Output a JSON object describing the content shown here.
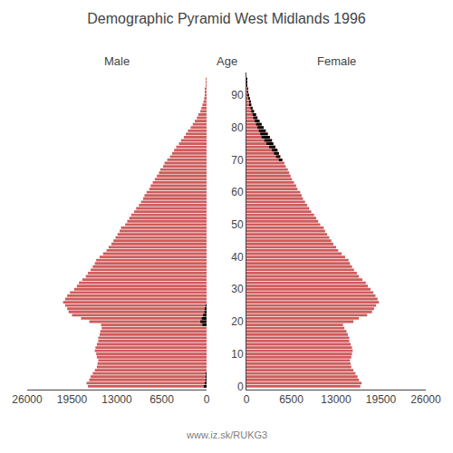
{
  "chart_data": {
    "type": "bar",
    "orientation": "horizontal",
    "title": "Demographic Pyramid West Midlands 1996",
    "ylabel": "Age",
    "annotations": [
      "www.iz.sk/RUKG3"
    ],
    "grid": false,
    "categories": [
      0,
      1,
      2,
      3,
      4,
      5,
      6,
      7,
      8,
      9,
      10,
      11,
      12,
      13,
      14,
      15,
      16,
      17,
      18,
      19,
      20,
      21,
      22,
      23,
      24,
      25,
      26,
      27,
      28,
      29,
      30,
      31,
      32,
      33,
      34,
      35,
      36,
      37,
      38,
      39,
      40,
      41,
      42,
      43,
      44,
      45,
      46,
      47,
      48,
      49,
      50,
      51,
      52,
      53,
      54,
      55,
      56,
      57,
      58,
      59,
      60,
      61,
      62,
      63,
      64,
      65,
      66,
      67,
      68,
      69,
      70,
      71,
      72,
      73,
      74,
      75,
      76,
      77,
      78,
      79,
      80,
      81,
      82,
      83,
      84,
      85,
      86,
      87,
      88,
      89,
      90,
      91,
      92,
      93,
      94,
      95
    ],
    "xlim": [
      0,
      26000
    ],
    "xticks": [
      0,
      6500,
      13000,
      19500,
      26000
    ],
    "ylim": [
      -1,
      97
    ],
    "yticks": [
      0,
      10,
      20,
      30,
      40,
      50,
      60,
      70,
      80,
      90
    ],
    "series": [
      {
        "name": "Male",
        "color": "#CD5C5C",
        "values": [
          17200,
          17400,
          17000,
          16800,
          16500,
          16200,
          15900,
          15800,
          15700,
          15900,
          16000,
          16200,
          16100,
          15900,
          15700,
          15700,
          15500,
          15400,
          15200,
          15300,
          17000,
          18200,
          19500,
          20000,
          20200,
          20500,
          20800,
          20500,
          20200,
          19800,
          19200,
          18800,
          18500,
          18000,
          17500,
          17200,
          16800,
          16500,
          16200,
          16000,
          15500,
          15000,
          14500,
          14200,
          13800,
          13500,
          13200,
          12900,
          12600,
          12400,
          11800,
          11500,
          11200,
          10900,
          10500,
          10200,
          9800,
          9500,
          9200,
          9000,
          8700,
          8300,
          8100,
          7800,
          7500,
          7200,
          6900,
          6700,
          6300,
          6100,
          5700,
          5300,
          5000,
          4700,
          4400,
          4000,
          3700,
          3300,
          3000,
          2700,
          2300,
          2000,
          1700,
          1400,
          1200,
          900,
          750,
          600,
          450,
          350,
          260,
          190,
          140,
          100,
          70,
          50
        ]
      },
      {
        "color": "#000000",
        "values": [
          400,
          200,
          100,
          100,
          100,
          0,
          0,
          0,
          0,
          0,
          0,
          0,
          0,
          0,
          0,
          0,
          0,
          0,
          0,
          600,
          900,
          700,
          500,
          300,
          200,
          100,
          0,
          0,
          0,
          0,
          0,
          0,
          0,
          0,
          0,
          0,
          0,
          0,
          0,
          0,
          0,
          0,
          0,
          0,
          0,
          0,
          0,
          0,
          0,
          0,
          0,
          0,
          0,
          0,
          0,
          0,
          0,
          0,
          0,
          0,
          0,
          0,
          0,
          0,
          0,
          0,
          0,
          0,
          0,
          0,
          0,
          0,
          0,
          0,
          0,
          0,
          0,
          0,
          0,
          0,
          0,
          0,
          0,
          0,
          0,
          0,
          0,
          0,
          0,
          0,
          0,
          0,
          0,
          0,
          0,
          0
        ]
      },
      {
        "name": "Female",
        "color": "#CD5C5C",
        "values": [
          16500,
          16700,
          16300,
          16100,
          15800,
          15500,
          15200,
          15100,
          15000,
          15200,
          15300,
          15400,
          15300,
          15100,
          14900,
          14900,
          14700,
          14500,
          14200,
          14000,
          15500,
          16300,
          17500,
          18200,
          18500,
          18800,
          19200,
          19000,
          18700,
          18400,
          18000,
          17600,
          17300,
          16800,
          16300,
          16000,
          15600,
          15300,
          15000,
          14800,
          14300,
          13800,
          13300,
          13000,
          12600,
          12300,
          12000,
          11700,
          11400,
          11200,
          10700,
          10400,
          10100,
          9800,
          9400,
          9100,
          8800,
          8500,
          8200,
          8000,
          7800,
          7400,
          7200,
          6900,
          6600,
          6400,
          6200,
          6000,
          5700,
          5500,
          5200,
          4900,
          4700,
          4500,
          4200,
          3900,
          3700,
          3400,
          3100,
          2800,
          2500,
          2200,
          1900,
          1600,
          1400,
          1100,
          900,
          700,
          550,
          420,
          310,
          230,
          170,
          120,
          85,
          60
        ]
      },
      {
        "color": "#000000",
        "values": [
          0,
          0,
          0,
          0,
          0,
          0,
          0,
          0,
          0,
          0,
          0,
          0,
          0,
          0,
          0,
          0,
          0,
          0,
          0,
          0,
          0,
          0,
          0,
          0,
          0,
          0,
          0,
          0,
          0,
          0,
          0,
          0,
          0,
          0,
          0,
          0,
          0,
          0,
          0,
          0,
          0,
          0,
          0,
          0,
          0,
          0,
          0,
          0,
          0,
          0,
          0,
          0,
          0,
          0,
          0,
          0,
          0,
          0,
          0,
          0,
          0,
          0,
          0,
          0,
          0,
          0,
          0,
          0,
          0,
          0,
          500,
          600,
          700,
          800,
          900,
          1000,
          1100,
          1200,
          1100,
          1000,
          900,
          800,
          700,
          600,
          500,
          400,
          300,
          200,
          150,
          100,
          70,
          50,
          30,
          20,
          10,
          5
        ]
      }
    ]
  }
}
